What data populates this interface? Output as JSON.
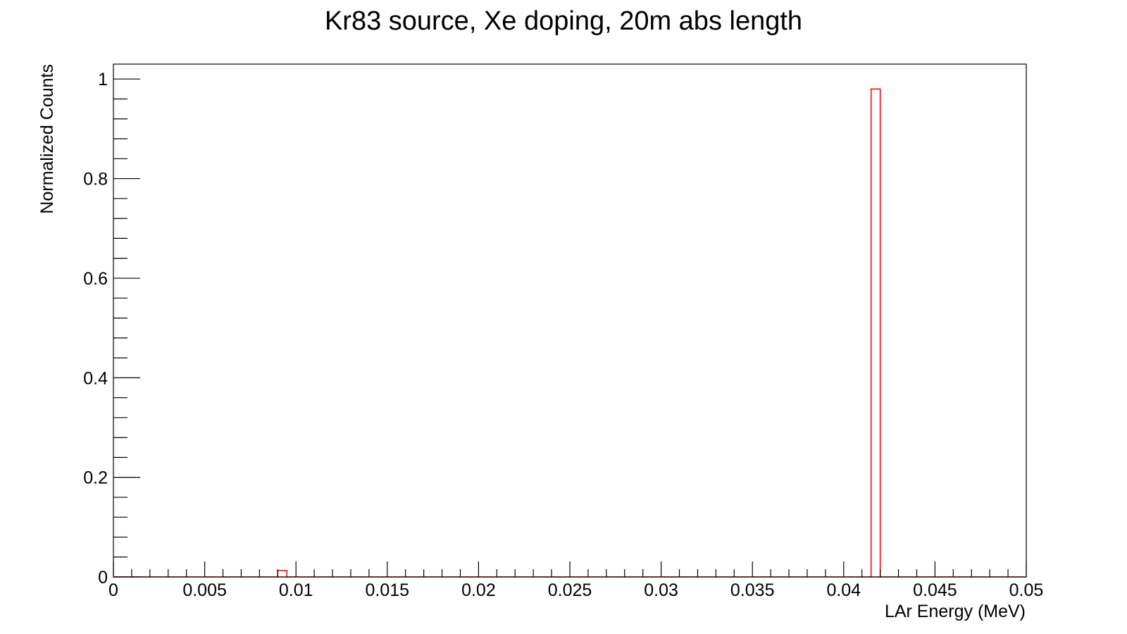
{
  "chart_data": {
    "type": "bar",
    "title": "Kr83 source, Xe doping, 20m abs length",
    "xlabel": "LAr Energy (MeV)",
    "ylabel": "Normalized Counts",
    "xlim": [
      0,
      0.05
    ],
    "ylim": [
      0,
      1.03
    ],
    "x_ticks": [
      {
        "value": 0,
        "label": "0"
      },
      {
        "value": 0.005,
        "label": "0.005"
      },
      {
        "value": 0.01,
        "label": "0.01"
      },
      {
        "value": 0.015,
        "label": "0.015"
      },
      {
        "value": 0.02,
        "label": "0.02"
      },
      {
        "value": 0.025,
        "label": "0.025"
      },
      {
        "value": 0.03,
        "label": "0.03"
      },
      {
        "value": 0.035,
        "label": "0.035"
      },
      {
        "value": 0.04,
        "label": "0.04"
      },
      {
        "value": 0.045,
        "label": "0.045"
      },
      {
        "value": 0.05,
        "label": "0.05"
      }
    ],
    "y_ticks": [
      {
        "value": 0,
        "label": "0"
      },
      {
        "value": 0.2,
        "label": "0.2"
      },
      {
        "value": 0.4,
        "label": "0.4"
      },
      {
        "value": 0.6,
        "label": "0.6"
      },
      {
        "value": 0.8,
        "label": "0.8"
      },
      {
        "value": 1,
        "label": "1"
      }
    ],
    "bin_width": 0.0005,
    "bins": [
      {
        "x_low": 0.009,
        "x_high": 0.0095,
        "value": 0.013
      },
      {
        "x_low": 0.0415,
        "x_high": 0.042,
        "value": 0.98
      }
    ],
    "grid": false,
    "legend": "none",
    "color": "#ff0000"
  }
}
